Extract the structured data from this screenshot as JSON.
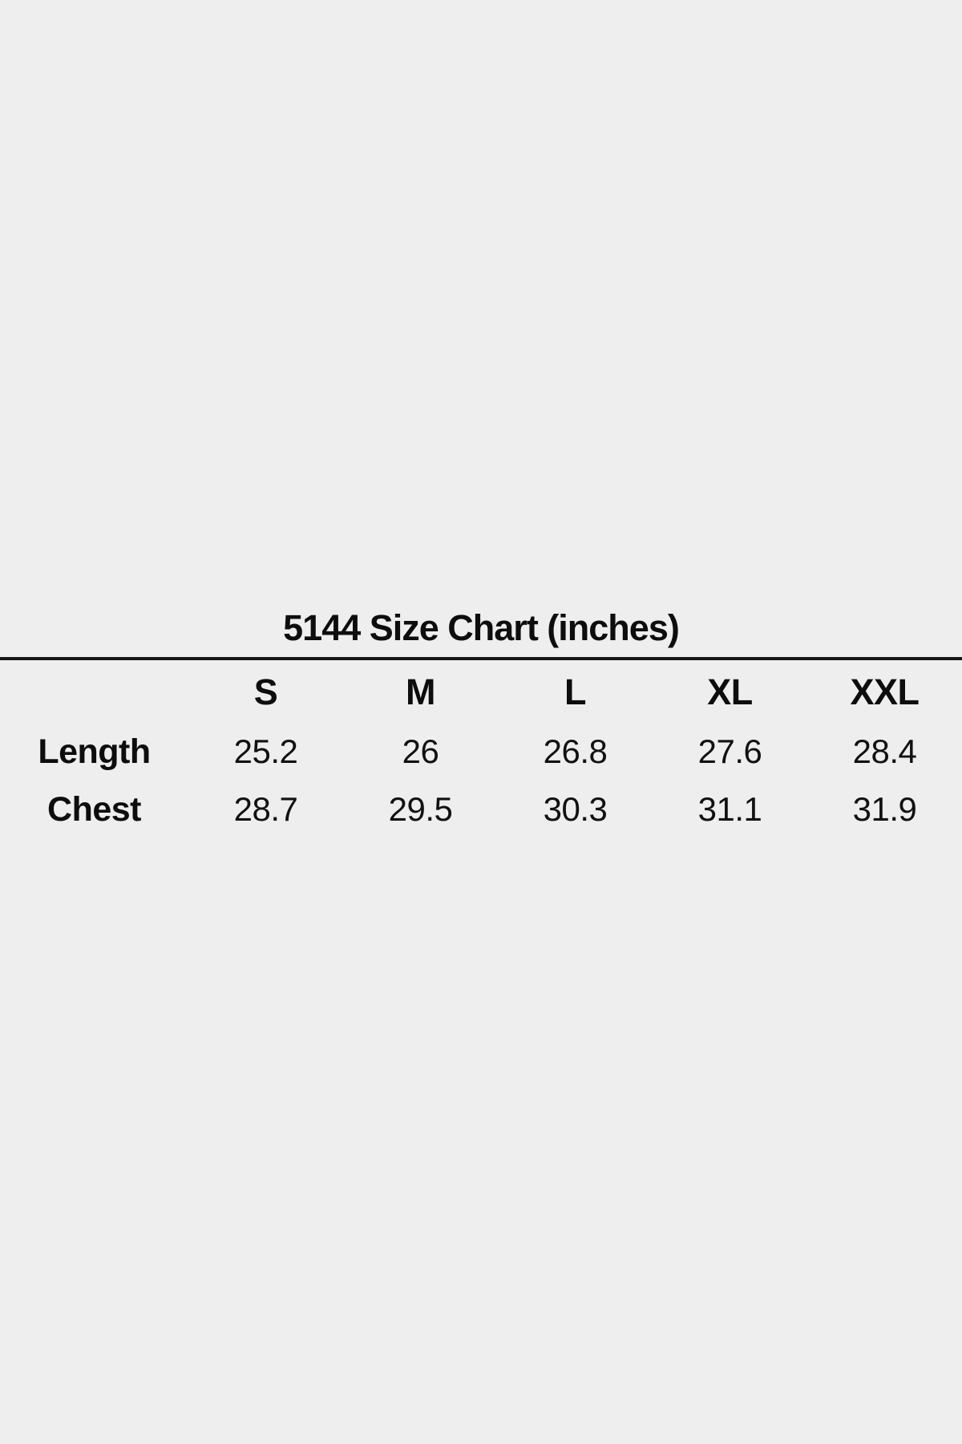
{
  "page": {
    "background_color": "#eeeeee",
    "text_color": "#111111",
    "rule_color": "#161616"
  },
  "chart_data": {
    "type": "table",
    "title": "5144 Size Chart (inches)",
    "units": "inches",
    "columns": [
      "S",
      "M",
      "L",
      "XL",
      "XXL"
    ],
    "rows": [
      {
        "label": "Length",
        "values": [
          25.2,
          26,
          26.8,
          27.6,
          28.4
        ]
      },
      {
        "label": "Chest",
        "values": [
          28.7,
          29.5,
          30.3,
          31.1,
          31.9
        ]
      }
    ]
  }
}
